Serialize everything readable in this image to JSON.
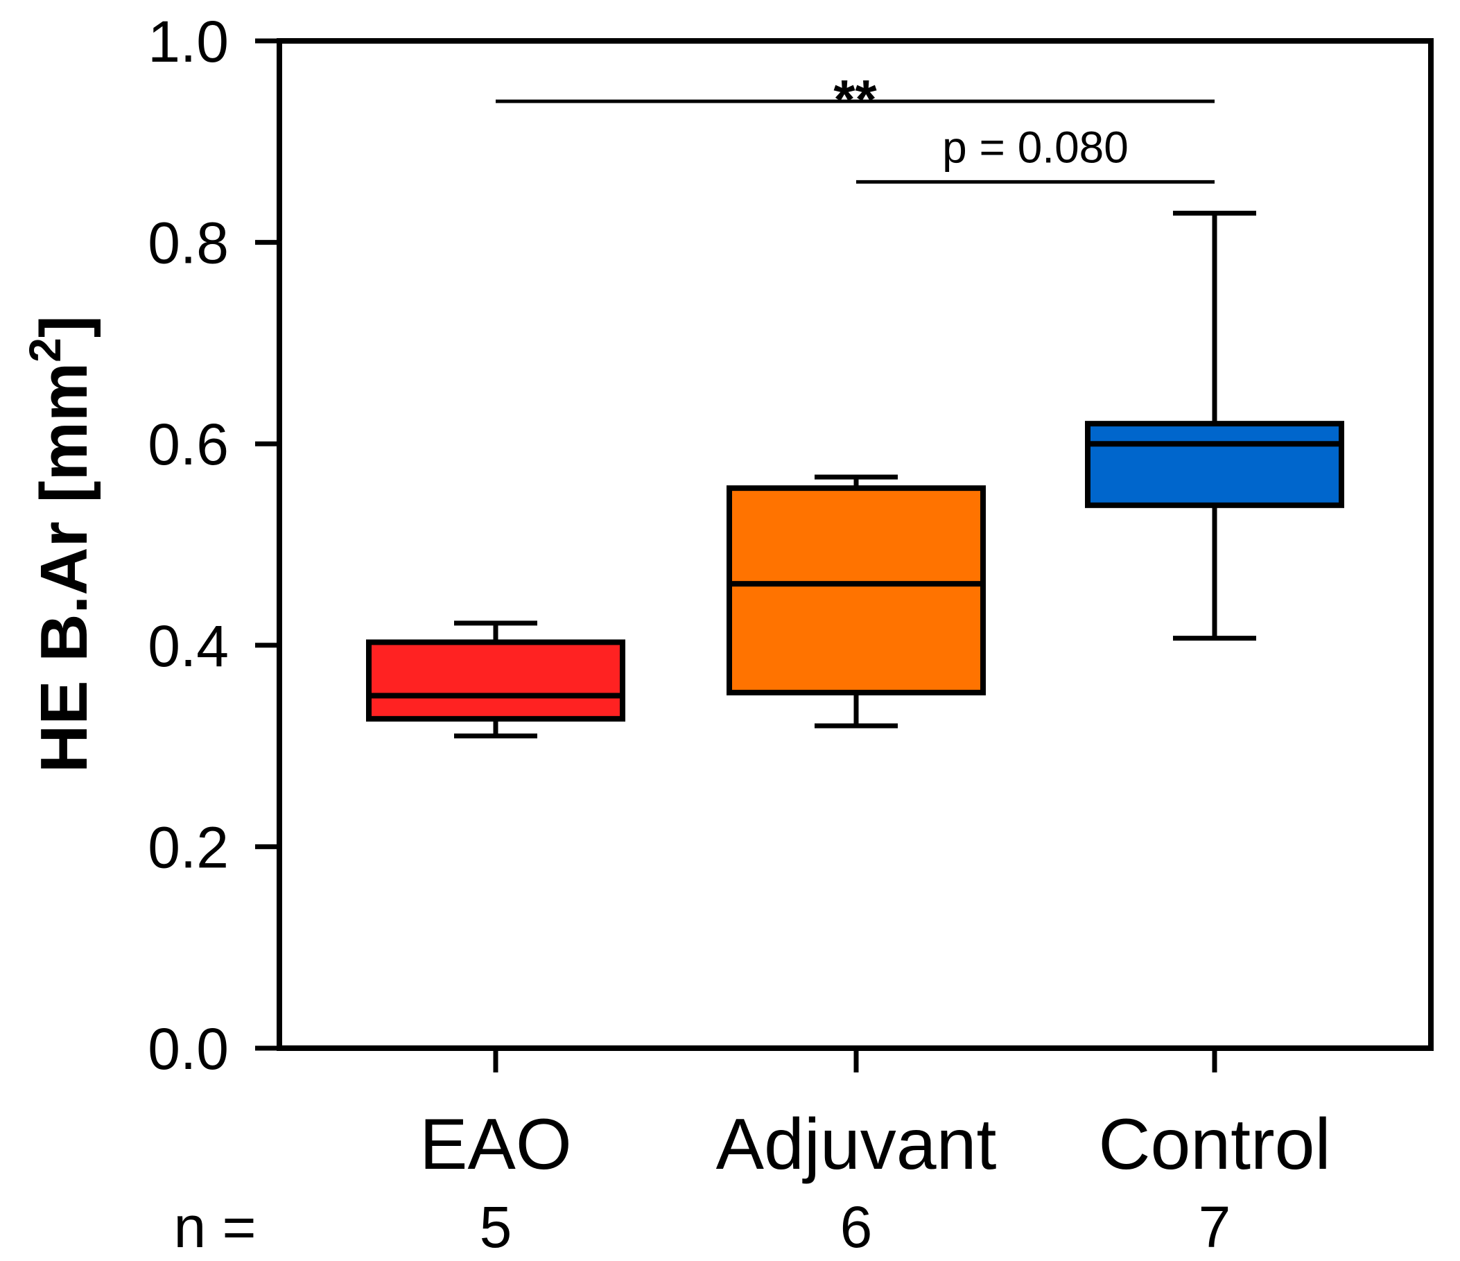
{
  "chart_data": {
    "type": "box",
    "title": "",
    "xlabel": "",
    "ylabel": {
      "text": "HE B.Ar [mm",
      "superscript": "2",
      "closing": "]"
    },
    "ylim": [
      0.0,
      1.0
    ],
    "yticks": [
      "0.0",
      "0.2",
      "0.4",
      "0.6",
      "0.8",
      "1.0"
    ],
    "ytick_values": [
      0.0,
      0.2,
      0.4,
      0.6,
      0.8,
      1.0
    ],
    "grid": false,
    "categories": [
      "EAO",
      "Adjuvant",
      "Control"
    ],
    "n_label": "n =",
    "n_values": [
      "5",
      "6",
      "7"
    ],
    "boxes": [
      {
        "name": "EAO",
        "whisker_low": 0.31,
        "q1": 0.327,
        "median": 0.35,
        "q3": 0.403,
        "whisker_high": 0.422,
        "color": "#ff2222"
      },
      {
        "name": "Adjuvant",
        "whisker_low": 0.32,
        "q1": 0.353,
        "median": 0.461,
        "q3": 0.556,
        "whisker_high": 0.567,
        "color": "#ff7300"
      },
      {
        "name": "Control",
        "whisker_low": 0.407,
        "q1": 0.539,
        "median": 0.6,
        "q3": 0.62,
        "whisker_high": 0.829,
        "color": "#0066cc"
      }
    ],
    "annotations": [
      {
        "text": "**",
        "from": "EAO",
        "to": "Control",
        "y": 0.94
      },
      {
        "text": "p = 0.080",
        "from": "Adjuvant",
        "to": "Control",
        "y": 0.86
      }
    ]
  }
}
